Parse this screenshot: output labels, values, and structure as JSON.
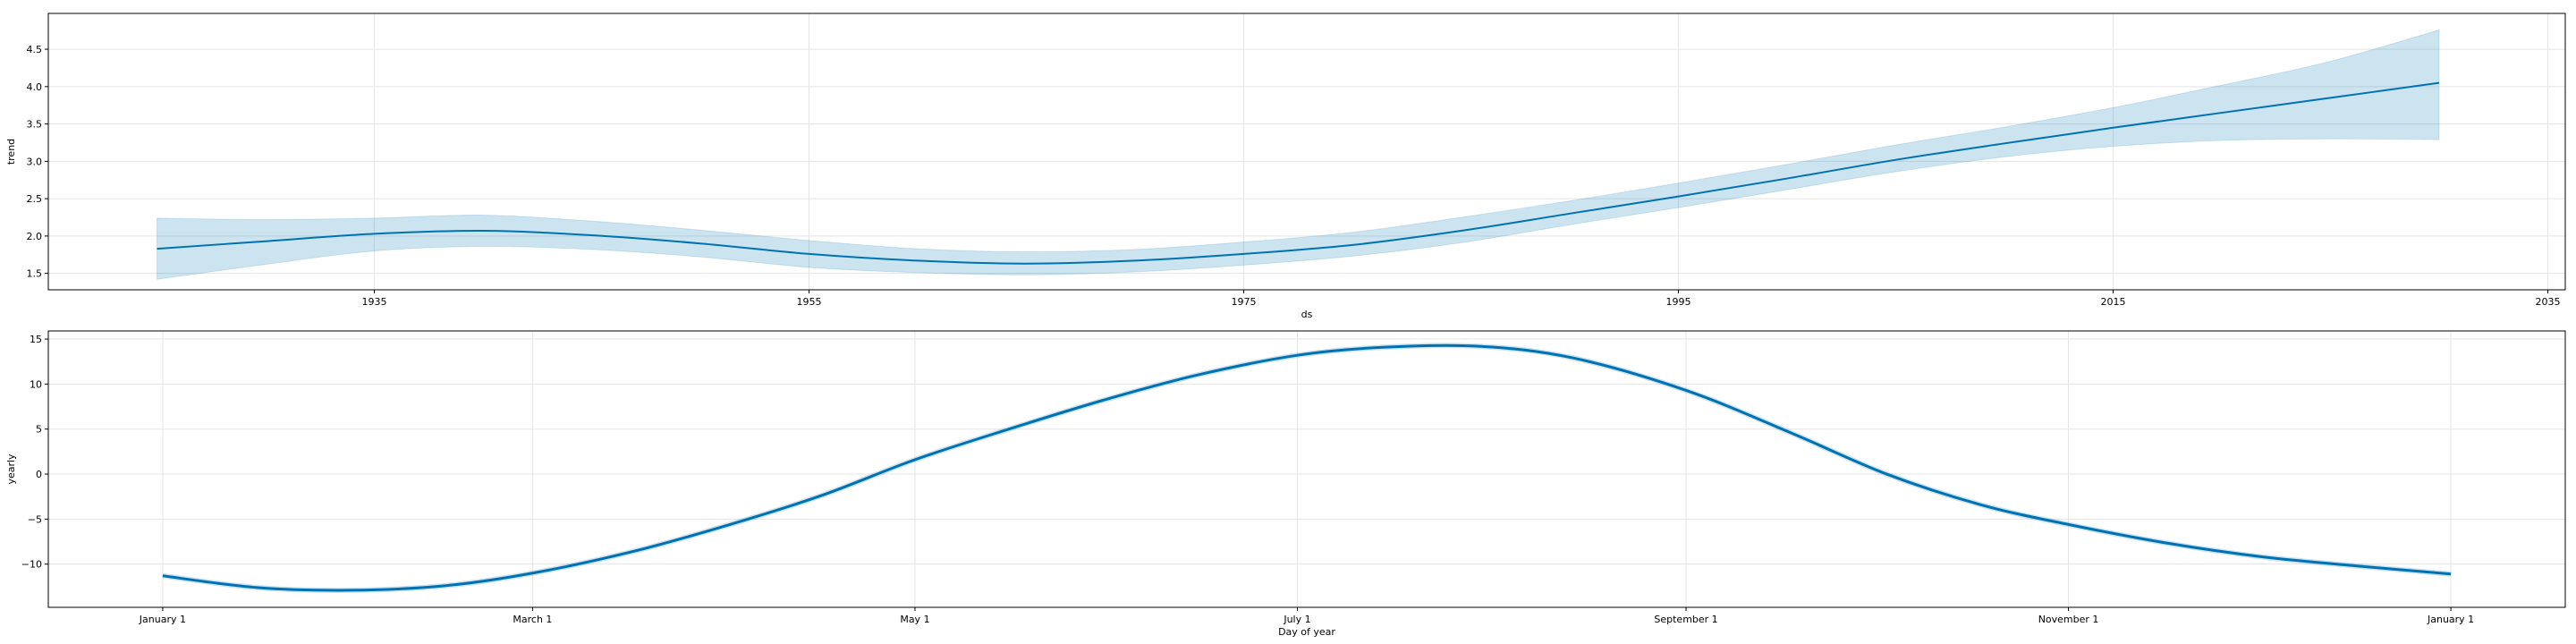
{
  "chart_data": [
    {
      "type": "line",
      "panel": "trend",
      "xlabel": "ds",
      "ylabel": "trend",
      "x_ticks": [
        1935,
        1955,
        1975,
        1995,
        2015,
        2035
      ],
      "y_ticks": [
        1.5,
        2.0,
        2.5,
        3.0,
        3.5,
        4.0,
        4.5
      ],
      "y_tick_labels": [
        "1.5",
        "2.0",
        "2.5",
        "3.0",
        "3.5",
        "4.0",
        "4.5"
      ],
      "xlim": [
        1920,
        2035.8
      ],
      "ylim": [
        1.28,
        4.98
      ],
      "grid": true,
      "colors": {
        "line": "#0072B2",
        "band": "#0072B2"
      },
      "x": [
        1925,
        1930,
        1935,
        1940,
        1945,
        1950,
        1955,
        1960,
        1965,
        1970,
        1975,
        1980,
        1985,
        1990,
        1995,
        2000,
        2005,
        2010,
        2015,
        2020,
        2025,
        2030
      ],
      "y": [
        1.83,
        1.93,
        2.03,
        2.07,
        2.01,
        1.9,
        1.76,
        1.67,
        1.63,
        1.67,
        1.76,
        1.88,
        2.07,
        2.3,
        2.53,
        2.77,
        3.02,
        3.24,
        3.45,
        3.65,
        3.85,
        4.05
      ],
      "y_lower": [
        1.42,
        1.62,
        1.8,
        1.86,
        1.82,
        1.72,
        1.58,
        1.51,
        1.48,
        1.52,
        1.61,
        1.73,
        1.91,
        2.15,
        2.38,
        2.62,
        2.86,
        3.06,
        3.2,
        3.28,
        3.3,
        3.29
      ],
      "y_upper": [
        2.24,
        2.22,
        2.24,
        2.28,
        2.2,
        2.08,
        1.94,
        1.83,
        1.79,
        1.82,
        1.92,
        2.05,
        2.25,
        2.47,
        2.71,
        2.96,
        3.22,
        3.46,
        3.72,
        4.02,
        4.34,
        4.76
      ]
    },
    {
      "type": "line",
      "panel": "yearly",
      "xlabel": "Day of year",
      "ylabel": "yearly",
      "x_ticks": [
        0,
        59,
        120,
        181,
        243,
        304,
        365
      ],
      "x_tick_labels": [
        "January 1",
        "March 1",
        "May 1",
        "July 1",
        "September 1",
        "November 1",
        "January 1"
      ],
      "y_ticks": [
        -10,
        -5,
        0,
        5,
        10,
        15
      ],
      "y_tick_labels": [
        "−10",
        "−5",
        "0",
        "5",
        "10",
        "15"
      ],
      "xlim": [
        -18.25,
        383.25
      ],
      "ylim": [
        -14.8,
        15.9
      ],
      "grid": true,
      "colors": {
        "line": "#0072B2",
        "band": "#0072B2"
      },
      "x": [
        0,
        15,
        30,
        45,
        59,
        75,
        90,
        105,
        120,
        135,
        150,
        165,
        181,
        195,
        210,
        225,
        243,
        260,
        275,
        290,
        304,
        320,
        335,
        350,
        365
      ],
      "y": [
        -11.3,
        -12.6,
        -12.9,
        -12.4,
        -11.0,
        -8.6,
        -5.7,
        -2.4,
        1.6,
        5.0,
        8.2,
        11.0,
        13.2,
        14.1,
        14.2,
        12.9,
        9.3,
        4.5,
        0.0,
        -3.4,
        -5.6,
        -7.7,
        -9.2,
        -10.2,
        -11.1
      ]
    }
  ]
}
